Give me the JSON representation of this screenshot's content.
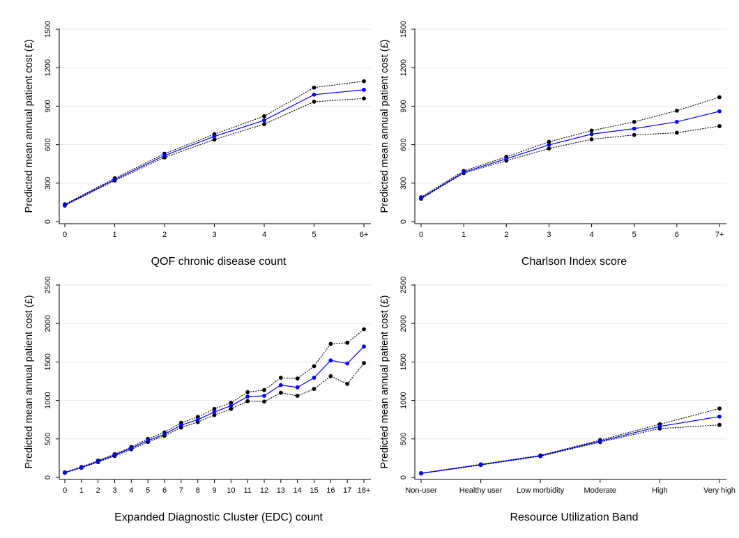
{
  "chart_data": [
    {
      "type": "line",
      "xlabel": "QOF chronic disease count",
      "ylabel": "Predicted mean annual patient cost (£)",
      "categories": [
        "0",
        "1",
        "2",
        "3",
        "4",
        "5",
        "6+"
      ],
      "ylim": [
        0,
        1500
      ],
      "yticks": [
        0,
        300,
        600,
        900,
        1200,
        1500
      ],
      "grid": true,
      "series": [
        {
          "role": "estimate",
          "color": "#0000ff",
          "style": "solid",
          "values": [
            130,
            328,
            515,
            665,
            790,
            990,
            1028
          ]
        },
        {
          "role": "upper",
          "color": "#000000",
          "style": "dotted",
          "values": [
            135,
            338,
            530,
            682,
            822,
            1045,
            1095
          ]
        },
        {
          "role": "lower",
          "color": "#000000",
          "style": "dotted",
          "values": [
            125,
            320,
            500,
            640,
            760,
            935,
            960
          ]
        }
      ]
    },
    {
      "type": "line",
      "xlabel": "Charlson Index score",
      "ylabel": "Predicted mean annual patient cost (£)",
      "categories": [
        "0",
        "1",
        "2",
        "3",
        "4",
        "5",
        "6",
        "7+"
      ],
      "ylim": [
        0,
        1500
      ],
      "yticks": [
        0,
        300,
        600,
        900,
        1200,
        1500
      ],
      "grid": true,
      "series": [
        {
          "role": "estimate",
          "color": "#0000ff",
          "style": "solid",
          "values": [
            183,
            385,
            490,
            598,
            682,
            725,
            778,
            860
          ]
        },
        {
          "role": "upper",
          "color": "#000000",
          "style": "dotted",
          "values": [
            190,
            395,
            505,
            622,
            710,
            778,
            865,
            970
          ]
        },
        {
          "role": "lower",
          "color": "#000000",
          "style": "dotted",
          "values": [
            178,
            378,
            475,
            570,
            642,
            676,
            693,
            745
          ]
        }
      ]
    },
    {
      "type": "line",
      "xlabel": "Expanded Diagnostic Cluster (EDC) count",
      "ylabel": "Predicted mean annual patient cost (£)",
      "categories": [
        "0",
        "1",
        "2",
        "3",
        "4",
        "5",
        "6",
        "7",
        "8",
        "9",
        "10",
        "11",
        "12",
        "13",
        "14",
        "15",
        "16",
        "17",
        "18+"
      ],
      "ylim": [
        0,
        2500
      ],
      "yticks": [
        0,
        500,
        1000,
        1500,
        2000,
        2500
      ],
      "grid": true,
      "series": [
        {
          "role": "estimate",
          "color": "#0000ff",
          "style": "solid",
          "values": [
            62,
            130,
            208,
            290,
            380,
            480,
            560,
            678,
            750,
            850,
            930,
            1050,
            1060,
            1200,
            1170,
            1295,
            1520,
            1480,
            1700
          ]
        },
        {
          "role": "upper",
          "color": "#000000",
          "style": "dotted",
          "values": [
            66,
            136,
            218,
            302,
            395,
            500,
            585,
            710,
            785,
            890,
            970,
            1108,
            1135,
            1295,
            1285,
            1445,
            1735,
            1750,
            1925
          ]
        },
        {
          "role": "lower",
          "color": "#000000",
          "style": "dotted",
          "values": [
            58,
            124,
            198,
            278,
            365,
            460,
            540,
            648,
            718,
            810,
            890,
            990,
            985,
            1100,
            1060,
            1150,
            1315,
            1215,
            1485
          ]
        }
      ]
    },
    {
      "type": "line",
      "xlabel": "Resource Utilization Band",
      "ylabel": "Predicted mean annual patient cost (£)",
      "categories": [
        "Non-user",
        "Healthy user",
        "Low morbidity",
        "Moderate",
        "High",
        "Very high"
      ],
      "ylim": [
        0,
        2500
      ],
      "yticks": [
        0,
        500,
        1000,
        1500,
        2000,
        2500
      ],
      "grid": true,
      "series": [
        {
          "role": "estimate",
          "color": "#0000ff",
          "style": "solid",
          "values": [
            52,
            165,
            280,
            470,
            662,
            790
          ]
        },
        {
          "role": "upper",
          "color": "#000000",
          "style": "dotted",
          "values": [
            55,
            170,
            286,
            485,
            690,
            895
          ]
        },
        {
          "role": "lower",
          "color": "#000000",
          "style": "dotted",
          "values": [
            50,
            160,
            275,
            458,
            634,
            682
          ]
        }
      ]
    }
  ]
}
